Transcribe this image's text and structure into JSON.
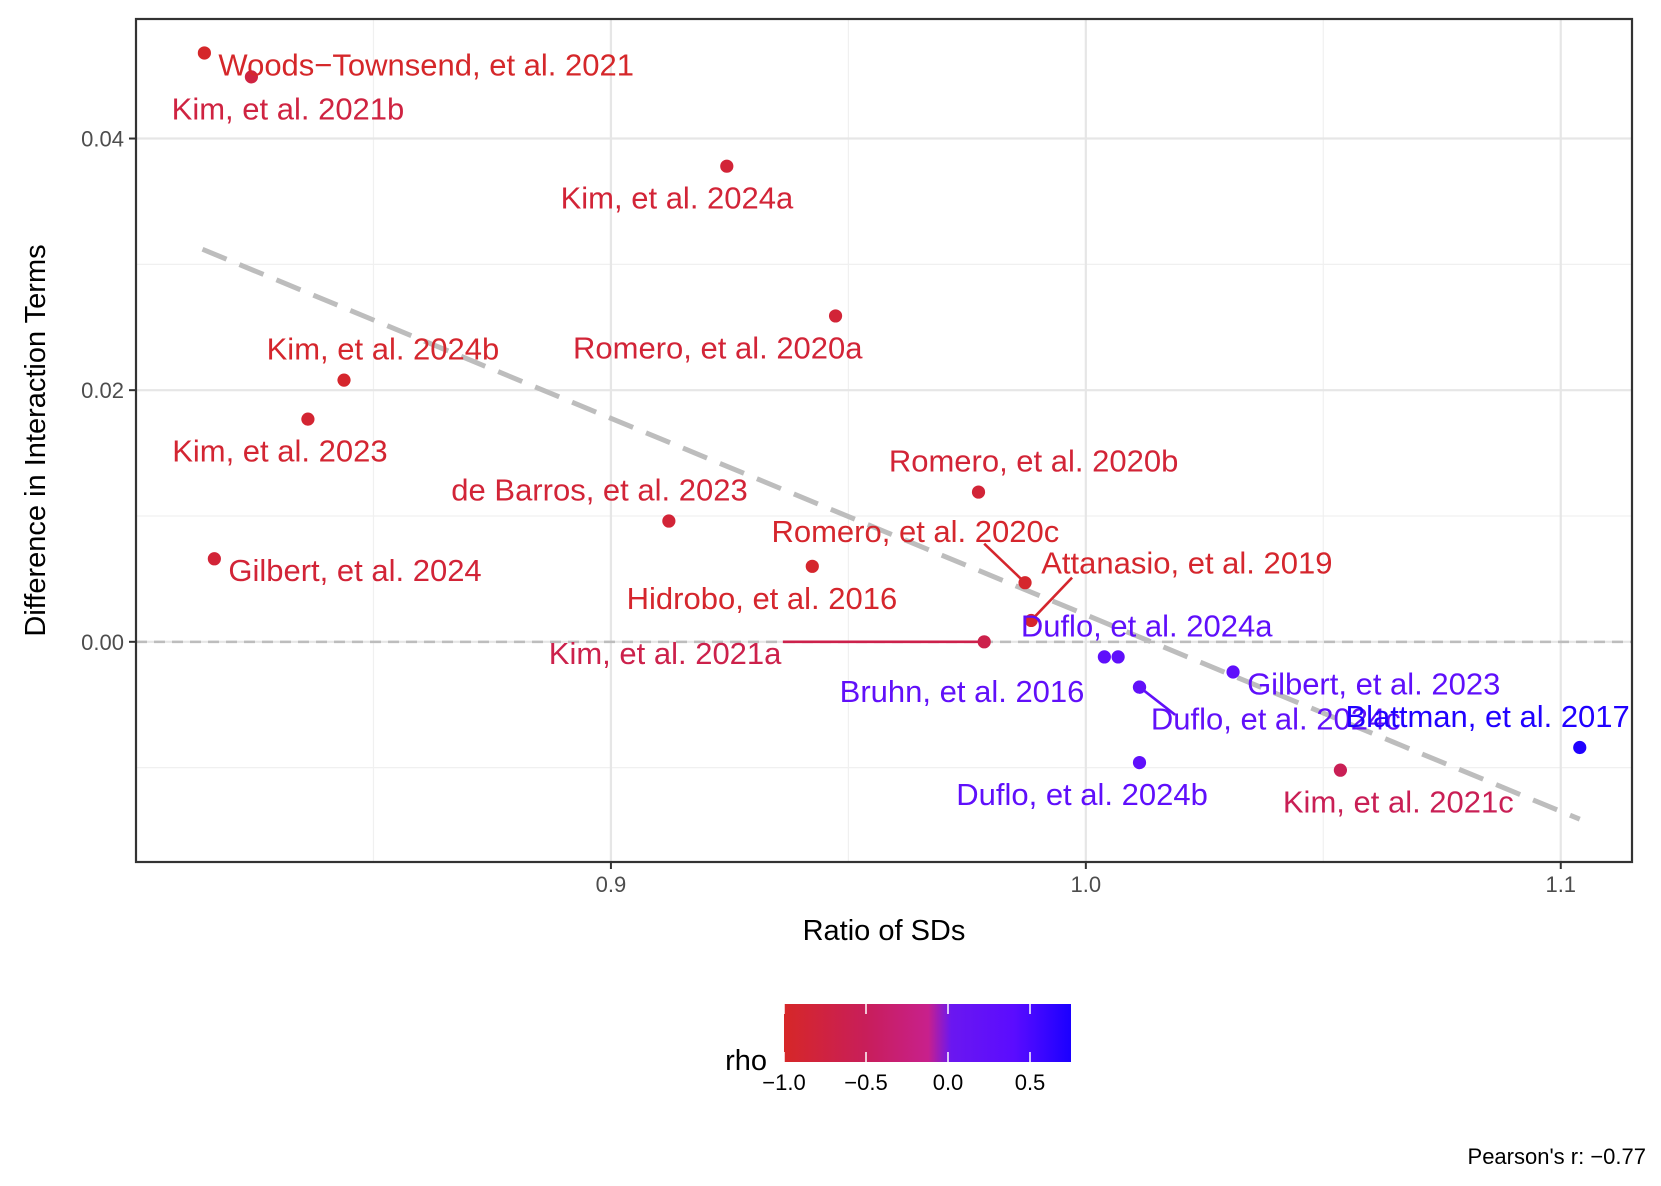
{
  "chart_data": {
    "type": "scatter",
    "xlabel": "Ratio of SDs",
    "ylabel": "Difference in Interaction Terms",
    "xlim": [
      0.8,
      1.115
    ],
    "ylim": [
      -0.0175,
      0.0495
    ],
    "x_ticks": [
      0.9,
      1.0,
      1.1
    ],
    "x_tick_labels": [
      "0.9",
      "1.0",
      "1.1"
    ],
    "y_ticks": [
      0.0,
      0.02,
      0.04
    ],
    "y_tick_labels": [
      "0.00",
      "0.02",
      "0.04"
    ],
    "grid": true,
    "reference_line": {
      "y": 0.0,
      "style": "dashed"
    },
    "trend_line": {
      "x": [
        0.814,
        1.104
      ],
      "y": [
        0.0312,
        -0.0141
      ],
      "style": "dashed"
    },
    "caption": "Pearson's r: −0.77",
    "color_legend": {
      "title": "rho",
      "range": [
        -1.0,
        0.75
      ],
      "tick_values": [
        -1.0,
        -0.5,
        0.0,
        0.5
      ],
      "tick_labels": [
        "−1.0",
        "−0.5",
        "0.0",
        "0.5"
      ],
      "colors": [
        "#d62728",
        "#c81e5a",
        "#c8208c",
        "#6a17f0",
        "#5b0cff",
        "#1b00ff"
      ],
      "color_stops": [
        -1.0,
        -0.5,
        -0.12,
        0.02,
        0.4,
        0.75
      ]
    },
    "points": [
      {
        "label": "Woods−Townsend, et al. 2021",
        "x": 0.8144,
        "y": 0.0468,
        "rho": -0.98,
        "label_anchor": "start",
        "label_dx": 4,
        "label_dy": -0.0009
      },
      {
        "label": "Kim, et al. 2021b",
        "x": 0.8243,
        "y": 0.0449,
        "rho": -0.75,
        "label_anchor": "middle",
        "label_dx": 0.0077,
        "label_dy": -0.0025
      },
      {
        "label": "Kim, et al. 2024a",
        "x": 0.9244,
        "y": 0.0378,
        "rho": -0.85,
        "label_anchor": "middle",
        "label_dx": -0.0105,
        "label_dy": -0.0025
      },
      {
        "label": "Romero, et al. 2020a",
        "x": 0.9473,
        "y": 0.0259,
        "rho": -0.85,
        "label_anchor": "middle",
        "label_dx": -0.0248,
        "label_dy": -0.0025
      },
      {
        "label": "Kim, et al. 2024b",
        "x": 0.8438,
        "y": 0.0208,
        "rho": -0.95,
        "label_anchor": "middle",
        "label_dx": 0.0082,
        "label_dy": 0.0025
      },
      {
        "label": "Kim, et al. 2023",
        "x": 0.8362,
        "y": 0.0177,
        "rho": -0.9,
        "label_anchor": "middle",
        "label_dx": -0.0059,
        "label_dy": -0.0025
      },
      {
        "label": "Romero, et al. 2020b",
        "x": 0.9774,
        "y": 0.0119,
        "rho": -0.85,
        "label_anchor": "middle",
        "label_dx": 0.0116,
        "label_dy": 0.0025
      },
      {
        "label": "de Barros, et al. 2023",
        "x": 0.9122,
        "y": 0.0096,
        "rho": -0.85,
        "label_anchor": "middle",
        "label_dx": -0.0146,
        "label_dy": 0.0025
      },
      {
        "label": "Gilbert, et al. 2024",
        "x": 0.8165,
        "y": 0.0066,
        "rho": -0.85,
        "label_anchor": "start",
        "label_dx": 4,
        "label_dy": -0.0009
      },
      {
        "label": "Hidrobo, et al. 2016",
        "x": 0.9424,
        "y": 0.006,
        "rho": -0.95,
        "label_anchor": "middle",
        "label_dx": -0.0106,
        "label_dy": -0.0025
      },
      {
        "label": "Romero, et al. 2020c",
        "x": 0.9872,
        "y": 0.0047,
        "rho": -0.95,
        "label_anchor": "end",
        "label_dx": 0.0072,
        "label_dy": 0.0041,
        "leader": {
          "x": 0.9786,
          "y": 0.0078
        }
      },
      {
        "label": "Attanasio, et al. 2019",
        "x": 0.9885,
        "y": 0.0017,
        "rho": -0.95,
        "label_anchor": "start",
        "label_dx": 0.0098,
        "label_dy": 0.0046,
        "leader": {
          "x": 0.9971,
          "y": 0.0051
        }
      },
      {
        "label": "Kim, et al. 2021a",
        "x": 0.9786,
        "y": 0.0,
        "rho": -0.65,
        "label_anchor": "end",
        "label_dx": -0.0427,
        "label_dy": -0.0009,
        "leader": {
          "x": 0.9362,
          "y": 0.0
        }
      },
      {
        "label": "Duflo, et al. 2024a",
        "x": 1.0039,
        "y": -0.0012,
        "rho": 0.3,
        "label_anchor": "middle",
        "label_dx": 0.0089,
        "label_dy": 0.0025
      },
      {
        "label": "Duflo, et al. 2024a",
        "x": 1.0068,
        "y": -0.0012,
        "rho": 0.3,
        "label_anchor": "none"
      },
      {
        "label": "Gilbert, et al. 2023",
        "x": 1.031,
        "y": -0.0024,
        "rho": 0.3,
        "label_anchor": "start",
        "label_dx": 4,
        "label_dy": -0.0009
      },
      {
        "label": "Bruhn, et al. 2016",
        "x": 1.0113,
        "y": -0.0036,
        "rho": 0.25,
        "label_anchor": "end",
        "label_dx": -0.0116,
        "label_dy": -0.0003
      },
      {
        "label": "Duflo, et al. 2024c",
        "x": 1.0113,
        "y": -0.0036,
        "rho": 0.25,
        "label_anchor": "middle",
        "label_dx": 0.0287,
        "label_dy": -0.0025,
        "leader": {
          "x": 1.0188,
          "y": -0.0058
        },
        "label_offset_x": 0.0287,
        "label_x": 1.04
      },
      {
        "label": "Duflo, et al. 2024b",
        "x": 1.0113,
        "y": -0.0096,
        "rho": 0.3,
        "label_anchor": "middle",
        "label_dx": -0.0121,
        "label_dy": -0.0025
      },
      {
        "label": "Blattman, et al. 2017",
        "x": 1.104,
        "y": -0.0084,
        "rho": 0.72,
        "label_anchor": "middle",
        "label_dx": -0.0194,
        "label_dy": 0.0025
      },
      {
        "label": "Kim, et al. 2021c",
        "x": 1.0536,
        "y": -0.0102,
        "rho": -0.55,
        "label_anchor": "middle",
        "label_dx": 0.0122,
        "label_dy": -0.0025
      }
    ]
  }
}
